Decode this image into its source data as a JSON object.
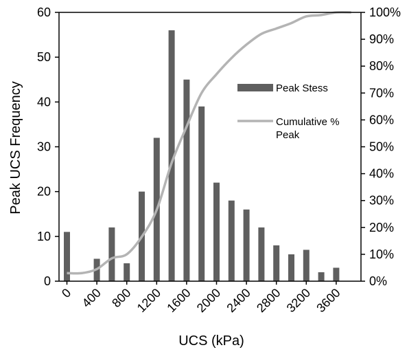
{
  "chart_data": {
    "type": "bar",
    "x": [
      0,
      200,
      400,
      600,
      800,
      1000,
      1200,
      1400,
      1600,
      1800,
      2000,
      2200,
      2400,
      2600,
      2800,
      3000,
      3200,
      3400,
      3600,
      3800
    ],
    "series": [
      {
        "name": "Peak Stess",
        "type": "bar",
        "axis": "left",
        "color": "#5f5f5f",
        "values": [
          11,
          0,
          5,
          12,
          4,
          20,
          32,
          56,
          45,
          39,
          22,
          18,
          16,
          12,
          8,
          6,
          7,
          2,
          3,
          0
        ]
      },
      {
        "name": "Cumulative % Peak",
        "type": "line",
        "axis": "right",
        "color": "#b4b4b4",
        "values": [
          3,
          3,
          4.5,
          8.5,
          10,
          16.5,
          26.5,
          44,
          57.5,
          70,
          77,
          83,
          88,
          92,
          94,
          96,
          98.5,
          99,
          100,
          100
        ]
      }
    ],
    "x_tick_labels": [
      "0",
      "400",
      "800",
      "1200",
      "1600",
      "2000",
      "2400",
      "2800",
      "3200",
      "3600"
    ],
    "x_tick_values": [
      0,
      400,
      800,
      1200,
      1600,
      2000,
      2400,
      2800,
      3200,
      3600
    ],
    "y_ticks": [
      0,
      10,
      20,
      30,
      40,
      50,
      60
    ],
    "y2_ticks": [
      "0%",
      "10%",
      "20%",
      "30%",
      "40%",
      "50%",
      "60%",
      "70%",
      "80%",
      "90%",
      "100%"
    ],
    "xlabel": "UCS (kPa)",
    "ylabel": "Peak UCS Frequency",
    "ylim": [
      0,
      60
    ],
    "y2lim": [
      0,
      100
    ],
    "legend": {
      "placement": "right",
      "entries": [
        {
          "label_lines": [
            "Peak Stess"
          ],
          "kind": "bar"
        },
        {
          "label_lines": [
            "Cumulative %",
            "Peak"
          ],
          "kind": "line"
        }
      ]
    },
    "grid": false
  }
}
